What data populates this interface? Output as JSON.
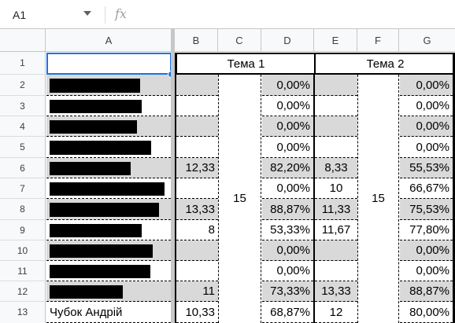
{
  "formula_bar": {
    "cell_ref": "A1",
    "fx_label": "fx",
    "formula": ""
  },
  "columns": [
    "A",
    "B",
    "C",
    "D",
    "E",
    "F",
    "G"
  ],
  "rows": [
    "1",
    "2",
    "3",
    "4",
    "5",
    "6",
    "7",
    "8",
    "9",
    "10",
    "11",
    "12",
    "13"
  ],
  "headers": {
    "topic1": "Тема 1",
    "topic2": "Тема 2"
  },
  "merged": {
    "c_value": "15",
    "f_value": "15"
  },
  "data_rows": [
    {
      "b": "",
      "d": "0,00%",
      "e": "",
      "g": "0,00%"
    },
    {
      "b": "",
      "d": "0,00%",
      "e": "",
      "g": "0,00%"
    },
    {
      "b": "",
      "d": "0,00%",
      "e": "",
      "g": "0,00%"
    },
    {
      "b": "",
      "d": "0,00%",
      "e": "",
      "g": "0,00%"
    },
    {
      "b": "12,33",
      "d": "82,20%",
      "e": "8,33",
      "g": "55,53%"
    },
    {
      "b": "",
      "d": "0,00%",
      "e": "10",
      "g": "66,67%"
    },
    {
      "b": "13,33",
      "d": "88,87%",
      "e": "11,33",
      "g": "75,53%"
    },
    {
      "b": "8",
      "d": "53,33%",
      "e": "11,67",
      "g": "77,80%"
    },
    {
      "b": "",
      "d": "0,00%",
      "e": "",
      "g": "0,00%"
    },
    {
      "b": "",
      "d": "0,00%",
      "e": "",
      "g": "0,00%"
    },
    {
      "b": "11",
      "d": "73,33%",
      "e": "13,33",
      "g": "88,87%"
    },
    {
      "b": "10,33",
      "d": "68,87%",
      "e": "12",
      "g": "80,00%"
    }
  ],
  "last_name": "Чубок Андрій",
  "colors": {
    "selection": "#1a73e8",
    "band": "#d9d9d9",
    "header_bg": "#f8f9fa"
  }
}
